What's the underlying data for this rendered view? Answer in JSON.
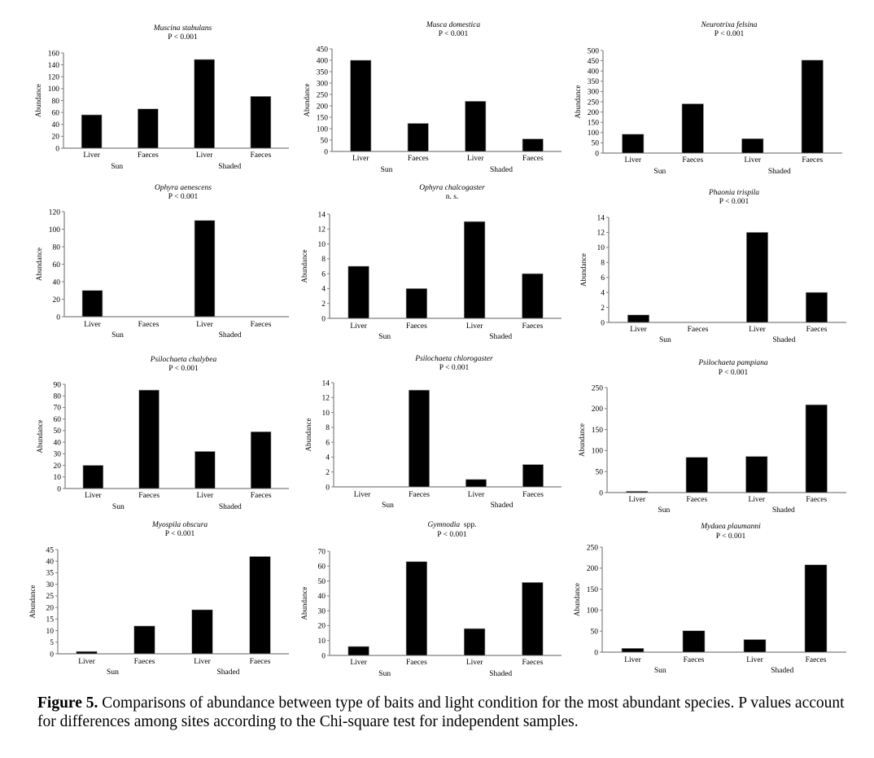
{
  "chart_data": [
    {
      "type": "bar",
      "title": "Muscina stabulans",
      "subtitle": "P < 0.001",
      "ylabel": "Abundance",
      "categories": [
        "Liver",
        "Faeces",
        "Liver",
        "Faeces"
      ],
      "groups": [
        "Sun",
        "Shaded"
      ],
      "values": [
        56,
        66,
        149,
        87
      ],
      "ylim": [
        0,
        160
      ],
      "yticks": [
        0,
        20,
        40,
        60,
        80,
        100,
        120,
        140,
        160
      ]
    },
    {
      "type": "bar",
      "title": "Musca domestica",
      "subtitle": "P < 0.001",
      "ylabel": "Abundance",
      "categories": [
        "Liver",
        "Faeces",
        "Liver",
        "Faeces"
      ],
      "groups": [
        "Sun",
        "Shaded"
      ],
      "values": [
        400,
        123,
        220,
        55
      ],
      "ylim": [
        0,
        450
      ],
      "yticks": [
        0,
        50,
        100,
        150,
        200,
        250,
        300,
        350,
        400,
        450
      ]
    },
    {
      "type": "bar",
      "title": "Neurotrixa felsina",
      "subtitle": "P < 0.001",
      "ylabel": "Abundance",
      "categories": [
        "Liver",
        "Faeces",
        "Liver",
        "Faeces"
      ],
      "groups": [
        "Sun",
        "Shaded"
      ],
      "values": [
        92,
        240,
        70,
        453
      ],
      "ylim": [
        0,
        500
      ],
      "yticks": [
        0,
        50,
        100,
        150,
        200,
        250,
        300,
        350,
        400,
        450,
        500
      ]
    },
    {
      "type": "bar",
      "title": "Ophyra aenescens",
      "subtitle": "P < 0.001",
      "ylabel": "Abundance",
      "categories": [
        "Liver",
        "Faeces",
        "Liver",
        "Faeces"
      ],
      "groups": [
        "Sun",
        "Shaded"
      ],
      "values": [
        30,
        0,
        110,
        0
      ],
      "ylim": [
        0,
        120
      ],
      "yticks": [
        0,
        20,
        40,
        60,
        80,
        100,
        120
      ]
    },
    {
      "type": "bar",
      "title": "Ophyra chalcogaster",
      "subtitle": "n. s.",
      "ylabel": "Abundance",
      "categories": [
        "Liver",
        "Faeces",
        "Liver",
        "Faeces"
      ],
      "groups": [
        "Sun",
        "Shaded"
      ],
      "values": [
        7,
        4,
        13,
        6
      ],
      "ylim": [
        0,
        14
      ],
      "yticks": [
        0,
        2,
        4,
        6,
        8,
        10,
        12,
        14
      ]
    },
    {
      "type": "bar",
      "title": "Phaonia trispila",
      "subtitle": "P < 0.001",
      "ylabel": "Abundance",
      "categories": [
        "Liver",
        "Faeces",
        "Liver",
        "Faeces"
      ],
      "groups": [
        "Sun",
        "Shaded"
      ],
      "values": [
        1,
        0,
        12,
        4
      ],
      "ylim": [
        0,
        14
      ],
      "yticks": [
        0,
        2,
        4,
        6,
        8,
        10,
        12,
        14
      ]
    },
    {
      "type": "bar",
      "title": "Psilochaeta chalybea",
      "subtitle": "P < 0.001",
      "ylabel": "Abundance",
      "categories": [
        "Liver",
        "Faeces",
        "Liver",
        "Faeces"
      ],
      "groups": [
        "Sun",
        "Shaded"
      ],
      "values": [
        20,
        85,
        32,
        49
      ],
      "ylim": [
        0,
        90
      ],
      "yticks": [
        0,
        10,
        20,
        30,
        40,
        50,
        60,
        70,
        80,
        90
      ]
    },
    {
      "type": "bar",
      "title": "Psilochaeta chlorogaster",
      "subtitle": "P < 0.001",
      "ylabel": "Abundance",
      "categories": [
        "Liver",
        "Faeces",
        "Liver",
        "Faeces"
      ],
      "groups": [
        "Sun",
        "Shaded"
      ],
      "values": [
        0,
        13,
        1,
        3
      ],
      "ylim": [
        0,
        14
      ],
      "yticks": [
        0,
        2,
        4,
        6,
        8,
        10,
        12,
        14
      ]
    },
    {
      "type": "bar",
      "title": "Psilochaeta pampiana",
      "subtitle": "P < 0.001",
      "ylabel": "Abundance",
      "categories": [
        "Liver",
        "Faeces",
        "Liver",
        "Faeces"
      ],
      "groups": [
        "Sun",
        "Shaded"
      ],
      "values": [
        3,
        84,
        86,
        209
      ],
      "ylim": [
        0,
        250
      ],
      "yticks": [
        0,
        50,
        100,
        150,
        200,
        250
      ]
    },
    {
      "type": "bar",
      "title": "Myospila obscura",
      "subtitle": "P < 0.001",
      "ylabel": "Abundance",
      "categories": [
        "Liver",
        "Faeces",
        "Liver",
        "Faeces"
      ],
      "groups": [
        "Sun",
        "Shaded"
      ],
      "values": [
        1,
        12,
        19,
        42
      ],
      "ylim": [
        0,
        45
      ],
      "yticks": [
        0,
        5,
        10,
        15,
        20,
        25,
        30,
        35,
        40,
        45
      ]
    },
    {
      "type": "bar",
      "title": "Gymnodia  spp.",
      "title_italic": "Gymnodia",
      "title_plain": "  spp.",
      "subtitle": "P < 0.001",
      "ylabel": "Abundance",
      "categories": [
        "Liver",
        "Faeces",
        "Liver",
        "Faeces"
      ],
      "groups": [
        "Sun",
        "Shaded"
      ],
      "values": [
        6,
        63,
        18,
        49
      ],
      "ylim": [
        0,
        70
      ],
      "yticks": [
        0,
        10,
        20,
        30,
        40,
        50,
        60,
        70
      ]
    },
    {
      "type": "bar",
      "title": "Mydaea plaumanni",
      "subtitle": "P < 0.001",
      "ylabel": "Abundance",
      "categories": [
        "Liver",
        "Faeces",
        "Liver",
        "Faeces"
      ],
      "groups": [
        "Sun",
        "Shaded"
      ],
      "values": [
        9,
        51,
        30,
        208
      ],
      "ylim": [
        0,
        250
      ],
      "yticks": [
        0,
        50,
        100,
        150,
        200,
        250
      ]
    }
  ],
  "caption": {
    "label": "Figure 5.",
    "text": " Comparisons of abundance between type of baits and light condition for the most abundant species. P values account for differences among sites according to the Chi-square test for independent samples."
  },
  "colors": {
    "bar": "#000000",
    "axis": "#7f7f7f",
    "bar_edge": "#9a9a9a"
  }
}
